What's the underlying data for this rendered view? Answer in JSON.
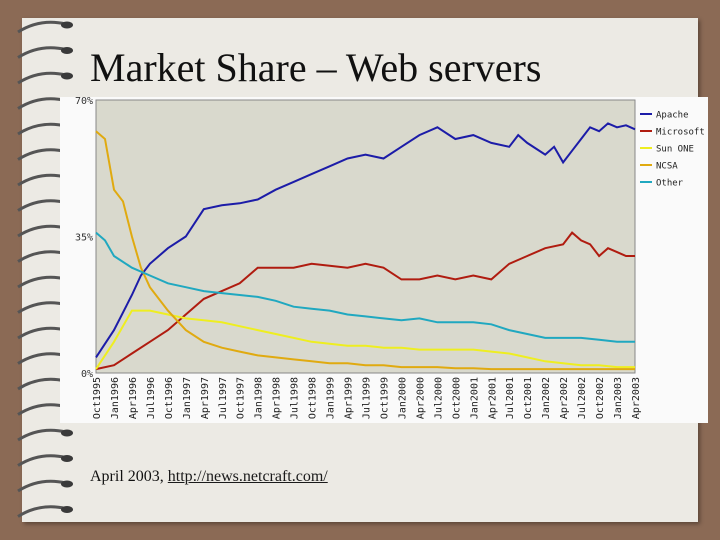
{
  "slide": {
    "title": "Market Share – Web servers",
    "caption_prefix": "April 2003, ",
    "caption_link": "http://news.netcraft.com/"
  },
  "colors": {
    "background": "#8b6a55",
    "page": "#eceae4",
    "plot_background": "#d9d9cd",
    "Apache": "#1c1ca8",
    "Microsoft": "#b01c10",
    "SunONE": "#eeee20",
    "NCSA": "#e0aa10",
    "Other": "#20a8c0"
  },
  "chart_data": {
    "type": "line",
    "title": "",
    "xlabel": "",
    "ylabel": "",
    "ylim": [
      0,
      70
    ],
    "y_ticks": [
      "0%",
      "35%",
      "70%"
    ],
    "y_tick_values": [
      0,
      35,
      70
    ],
    "x_ticks": [
      "Oct1995",
      "Jan1996",
      "Apr1996",
      "Jul1996",
      "Oct1996",
      "Jan1997",
      "Apr1997",
      "Jul1997",
      "Oct1997",
      "Jan1998",
      "Apr1998",
      "Jul1998",
      "Oct1998",
      "Jan1999",
      "Apr1999",
      "Jul1999",
      "Oct1999",
      "Jan2000",
      "Apr2000",
      "Jul2000",
      "Oct2000",
      "Jan2001",
      "Apr2001",
      "Jul2001",
      "Oct2001",
      "Jan2002",
      "Apr2002",
      "Jul2002",
      "Oct2002",
      "Jan2003",
      "Apr2003"
    ],
    "legend_position": "right",
    "grid": false,
    "series": [
      {
        "name": "Apache",
        "color_key": "Apache",
        "points": [
          [
            0,
            4
          ],
          [
            1,
            11
          ],
          [
            2,
            20
          ],
          [
            2.5,
            25
          ],
          [
            3,
            28
          ],
          [
            4,
            32
          ],
          [
            5,
            35
          ],
          [
            6,
            42
          ],
          [
            7,
            43
          ],
          [
            8,
            43.5
          ],
          [
            9,
            44.5
          ],
          [
            10,
            47
          ],
          [
            11,
            49
          ],
          [
            12,
            51
          ],
          [
            13,
            53
          ],
          [
            14,
            55
          ],
          [
            15,
            56
          ],
          [
            16,
            55
          ],
          [
            17,
            58
          ],
          [
            18,
            61
          ],
          [
            19,
            63
          ],
          [
            20,
            60
          ],
          [
            21,
            61
          ],
          [
            22,
            59
          ],
          [
            23,
            58
          ],
          [
            23.5,
            61
          ],
          [
            24,
            59
          ],
          [
            25,
            56
          ],
          [
            25.5,
            58
          ],
          [
            26,
            54
          ],
          [
            26.5,
            57
          ],
          [
            27,
            60
          ],
          [
            27.5,
            63
          ],
          [
            28,
            62
          ],
          [
            28.5,
            64
          ],
          [
            29,
            63
          ],
          [
            29.5,
            63.5
          ],
          [
            30,
            62.5
          ]
        ]
      },
      {
        "name": "Microsoft",
        "color_key": "Microsoft",
        "points": [
          [
            0,
            1
          ],
          [
            1,
            2
          ],
          [
            2,
            5
          ],
          [
            3,
            8
          ],
          [
            4,
            11
          ],
          [
            5,
            15
          ],
          [
            6,
            19
          ],
          [
            7,
            21
          ],
          [
            8,
            23
          ],
          [
            9,
            27
          ],
          [
            10,
            27
          ],
          [
            11,
            27
          ],
          [
            12,
            28
          ],
          [
            13,
            27.5
          ],
          [
            14,
            27
          ],
          [
            15,
            28
          ],
          [
            16,
            27
          ],
          [
            17,
            24
          ],
          [
            18,
            24
          ],
          [
            19,
            25
          ],
          [
            20,
            24
          ],
          [
            21,
            25
          ],
          [
            22,
            24
          ],
          [
            23,
            28
          ],
          [
            24,
            30
          ],
          [
            25,
            32
          ],
          [
            26,
            33
          ],
          [
            26.5,
            36
          ],
          [
            27,
            34
          ],
          [
            27.5,
            33
          ],
          [
            28,
            30
          ],
          [
            28.5,
            32
          ],
          [
            29,
            31
          ],
          [
            29.5,
            30
          ],
          [
            30,
            30
          ]
        ]
      },
      {
        "name": "Sun ONE",
        "color_key": "SunONE",
        "points": [
          [
            0,
            1
          ],
          [
            1,
            8
          ],
          [
            2,
            16
          ],
          [
            3,
            16
          ],
          [
            4,
            15
          ],
          [
            5,
            14
          ],
          [
            6,
            13.5
          ],
          [
            7,
            13
          ],
          [
            8,
            12
          ],
          [
            9,
            11
          ],
          [
            10,
            10
          ],
          [
            11,
            9
          ],
          [
            12,
            8
          ],
          [
            13,
            7.5
          ],
          [
            14,
            7
          ],
          [
            15,
            7
          ],
          [
            16,
            6.5
          ],
          [
            17,
            6.5
          ],
          [
            18,
            6
          ],
          [
            19,
            6
          ],
          [
            20,
            6
          ],
          [
            21,
            6
          ],
          [
            22,
            5.5
          ],
          [
            23,
            5
          ],
          [
            24,
            4
          ],
          [
            25,
            3
          ],
          [
            26,
            2.5
          ],
          [
            27,
            2
          ],
          [
            28,
            2
          ],
          [
            29,
            1.5
          ],
          [
            30,
            1.5
          ]
        ]
      },
      {
        "name": "NCSA",
        "color_key": "NCSA",
        "points": [
          [
            0,
            62
          ],
          [
            0.5,
            60
          ],
          [
            1,
            47
          ],
          [
            1.5,
            44
          ],
          [
            2,
            35
          ],
          [
            2.5,
            27
          ],
          [
            3,
            22
          ],
          [
            4,
            16
          ],
          [
            5,
            11
          ],
          [
            6,
            8
          ],
          [
            7,
            6.5
          ],
          [
            8,
            5.5
          ],
          [
            9,
            4.5
          ],
          [
            10,
            4
          ],
          [
            11,
            3.5
          ],
          [
            12,
            3
          ],
          [
            13,
            2.5
          ],
          [
            14,
            2.5
          ],
          [
            15,
            2
          ],
          [
            16,
            2
          ],
          [
            17,
            1.5
          ],
          [
            18,
            1.5
          ],
          [
            19,
            1.5
          ],
          [
            20,
            1.2
          ],
          [
            21,
            1.2
          ],
          [
            22,
            1
          ],
          [
            23,
            1
          ],
          [
            24,
            1
          ],
          [
            25,
            1
          ],
          [
            26,
            1
          ],
          [
            27,
            1
          ],
          [
            28,
            1
          ],
          [
            29,
            1
          ],
          [
            30,
            1
          ]
        ]
      },
      {
        "name": "Other",
        "color_key": "Other",
        "points": [
          [
            0,
            36
          ],
          [
            0.5,
            34
          ],
          [
            1,
            30
          ],
          [
            2,
            27
          ],
          [
            3,
            25
          ],
          [
            4,
            23
          ],
          [
            5,
            22
          ],
          [
            6,
            21
          ],
          [
            7,
            20.5
          ],
          [
            8,
            20
          ],
          [
            9,
            19.5
          ],
          [
            10,
            18.5
          ],
          [
            11,
            17
          ],
          [
            12,
            16.5
          ],
          [
            13,
            16
          ],
          [
            14,
            15
          ],
          [
            15,
            14.5
          ],
          [
            16,
            14
          ],
          [
            17,
            13.5
          ],
          [
            18,
            14
          ],
          [
            19,
            13
          ],
          [
            20,
            13
          ],
          [
            21,
            13
          ],
          [
            22,
            12.5
          ],
          [
            23,
            11
          ],
          [
            24,
            10
          ],
          [
            25,
            9
          ],
          [
            26,
            9
          ],
          [
            27,
            9
          ],
          [
            28,
            8.5
          ],
          [
            29,
            8
          ],
          [
            30,
            8
          ]
        ]
      }
    ]
  }
}
